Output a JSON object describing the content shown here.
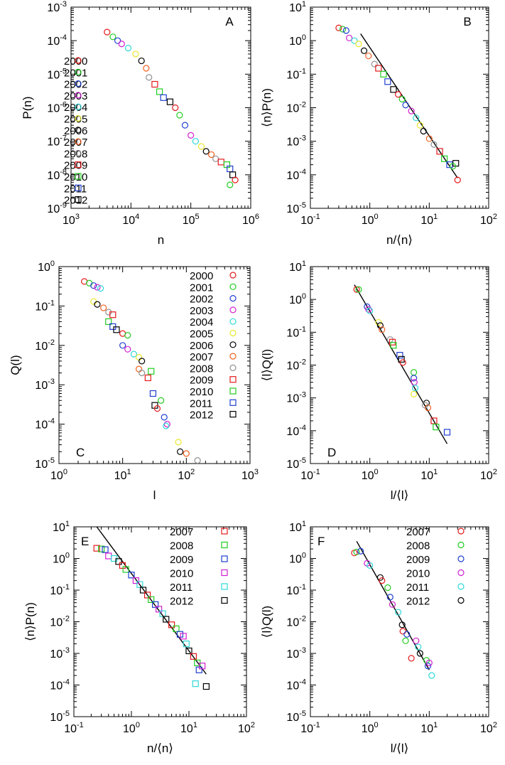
{
  "chart_data": [
    {
      "panel": "A",
      "type": "scatter",
      "xscale": "log",
      "yscale": "log",
      "xlim": [
        1000,
        1000000
      ],
      "ylim": [
        1e-09,
        0.001
      ],
      "xticks": [
        "10^3",
        "10^4",
        "10^5",
        "10^6"
      ],
      "yticks": [
        "10^-9",
        "10^-8",
        "10^-7",
        "10^-6",
        "10^-5",
        "10^-4",
        "10^-3"
      ],
      "xlabel": "n",
      "ylabel": "P(n)",
      "legend": {
        "position": "left",
        "entries": [
          {
            "label": "2000",
            "color": "#e41a1c",
            "marker": "circle"
          },
          {
            "label": "2001",
            "color": "#22cc22",
            "marker": "circle"
          },
          {
            "label": "2002",
            "color": "#1f3fcf",
            "marker": "circle"
          },
          {
            "label": "2003",
            "color": "#d020d0",
            "marker": "circle"
          },
          {
            "label": "2004",
            "color": "#30d8d8",
            "marker": "circle"
          },
          {
            "label": "2005",
            "color": "#e8e830",
            "marker": "circle"
          },
          {
            "label": "2006",
            "color": "#000000",
            "marker": "circle"
          },
          {
            "label": "2007",
            "color": "#f06020",
            "marker": "circle"
          },
          {
            "label": "2008",
            "color": "#909090",
            "marker": "circle"
          },
          {
            "label": "2009",
            "color": "#e41a1c",
            "marker": "square"
          },
          {
            "label": "2010",
            "color": "#22cc22",
            "marker": "square"
          },
          {
            "label": "2011",
            "color": "#1f3fcf",
            "marker": "square"
          },
          {
            "label": "2012",
            "color": "#000000",
            "marker": "square"
          }
        ]
      },
      "series_points": [
        [
          4000,
          0.00018
        ],
        [
          5000,
          0.00013
        ],
        [
          6000,
          0.0001
        ],
        [
          7000,
          8e-05
        ],
        [
          9000,
          6e-05
        ],
        [
          12000,
          4e-05
        ],
        [
          15000,
          2.5e-05
        ],
        [
          18000,
          1.5e-05
        ],
        [
          20000,
          8e-06
        ],
        [
          25000,
          5e-06
        ],
        [
          30000,
          3e-06
        ],
        [
          35000,
          2e-06
        ],
        [
          45000,
          1.5e-06
        ],
        [
          55000,
          1e-06
        ],
        [
          65000,
          6e-07
        ],
        [
          80000,
          3e-07
        ],
        [
          100000,
          1.5e-07
        ],
        [
          120000,
          1e-07
        ],
        [
          150000,
          7e-08
        ],
        [
          180000,
          5e-08
        ],
        [
          220000,
          4e-08
        ],
        [
          260000,
          3e-08
        ],
        [
          320000,
          2.4e-08
        ],
        [
          400000,
          2e-08
        ],
        [
          450000,
          1.5e-08
        ],
        [
          500000,
          1e-08
        ],
        [
          550000,
          7e-09
        ],
        [
          450000,
          5e-09
        ]
      ]
    },
    {
      "panel": "B",
      "type": "scatter",
      "xscale": "log",
      "yscale": "log",
      "xlim": [
        0.1,
        100
      ],
      "ylim": [
        1e-05,
        10
      ],
      "xticks": [
        "10^-1",
        "10^0",
        "10^1",
        "10^2"
      ],
      "yticks": [
        "10^-5",
        "10^-4",
        "10^-3",
        "10^-2",
        "10^-1",
        "10^0",
        "10^1"
      ],
      "xlabel": "n/⟨n⟩",
      "ylabel": "⟨n⟩P(n)",
      "fit_line": [
        [
          0.7,
          1.6
        ],
        [
          30,
          8e-05
        ]
      ],
      "series_points": [
        [
          0.3,
          2.4
        ],
        [
          0.35,
          2.2
        ],
        [
          0.4,
          2.0
        ],
        [
          0.45,
          1.2
        ],
        [
          0.55,
          1.0
        ],
        [
          0.65,
          0.8
        ],
        [
          0.8,
          0.5
        ],
        [
          0.95,
          0.35
        ],
        [
          1.2,
          0.2
        ],
        [
          1.4,
          0.15
        ],
        [
          1.7,
          0.1
        ],
        [
          2.0,
          0.06
        ],
        [
          2.5,
          0.035
        ],
        [
          3.0,
          0.025
        ],
        [
          3.5,
          0.018
        ],
        [
          4.0,
          0.012
        ],
        [
          5.0,
          0.008
        ],
        [
          6.0,
          0.005
        ],
        [
          7.0,
          0.003
        ],
        [
          8.0,
          0.002
        ],
        [
          10,
          0.0012
        ],
        [
          12,
          0.0008
        ],
        [
          15,
          0.0005
        ],
        [
          18,
          0.0003
        ],
        [
          22,
          0.0002
        ],
        [
          28,
          0.00022
        ],
        [
          30,
          7e-05
        ],
        [
          25,
          0.00018
        ]
      ]
    },
    {
      "panel": "C",
      "type": "scatter",
      "xscale": "log",
      "yscale": "log",
      "xlim": [
        1,
        1000
      ],
      "ylim": [
        1e-05,
        1
      ],
      "xticks": [
        "10^0",
        "10^1",
        "10^2",
        "10^3"
      ],
      "yticks": [
        "10^-5",
        "10^-4",
        "10^-3",
        "10^-2",
        "10^-1",
        "10^0"
      ],
      "xlabel": "l",
      "ylabel": "Q(l)",
      "legend": {
        "position": "top-right",
        "entries": [
          {
            "label": "2000",
            "color": "#e41a1c",
            "marker": "circle"
          },
          {
            "label": "2001",
            "color": "#22cc22",
            "marker": "circle"
          },
          {
            "label": "2002",
            "color": "#1f3fcf",
            "marker": "circle"
          },
          {
            "label": "2003",
            "color": "#d020d0",
            "marker": "circle"
          },
          {
            "label": "2004",
            "color": "#30d8d8",
            "marker": "circle"
          },
          {
            "label": "2005",
            "color": "#e8e830",
            "marker": "circle"
          },
          {
            "label": "2006",
            "color": "#000000",
            "marker": "circle"
          },
          {
            "label": "2007",
            "color": "#f06020",
            "marker": "circle"
          },
          {
            "label": "2008",
            "color": "#909090",
            "marker": "circle"
          },
          {
            "label": "2009",
            "color": "#e41a1c",
            "marker": "square"
          },
          {
            "label": "2010",
            "color": "#22cc22",
            "marker": "square"
          },
          {
            "label": "2011",
            "color": "#1f3fcf",
            "marker": "square"
          },
          {
            "label": "2012",
            "color": "#000000",
            "marker": "square"
          }
        ]
      },
      "series_points": [
        [
          2.5,
          0.42
        ],
        [
          3.0,
          0.38
        ],
        [
          3.5,
          0.33
        ],
        [
          4.0,
          0.3
        ],
        [
          4.5,
          0.28
        ],
        [
          3.5,
          0.13
        ],
        [
          4.0,
          0.11
        ],
        [
          5.0,
          0.09
        ],
        [
          6.0,
          0.07
        ],
        [
          7.0,
          0.06
        ],
        [
          6.0,
          0.04
        ],
        [
          7.0,
          0.03
        ],
        [
          8.0,
          0.025
        ],
        [
          10,
          0.02
        ],
        [
          12,
          0.018
        ],
        [
          10,
          0.01
        ],
        [
          12,
          0.008
        ],
        [
          15,
          0.006
        ],
        [
          18,
          0.005
        ],
        [
          20,
          0.004
        ],
        [
          18,
          0.0025
        ],
        [
          20,
          0.002
        ],
        [
          25,
          0.0015
        ],
        [
          28,
          0.0022
        ],
        [
          30,
          0.0006
        ],
        [
          32,
          0.0003
        ],
        [
          35,
          0.00025
        ],
        [
          40,
          0.0004
        ],
        [
          45,
          0.00015
        ],
        [
          50,
          0.0001
        ],
        [
          48,
          9e-05
        ],
        [
          75,
          3.5e-05
        ],
        [
          80,
          2e-05
        ],
        [
          100,
          1.8e-05
        ],
        [
          150,
          1.2e-05
        ]
      ]
    },
    {
      "panel": "D",
      "type": "scatter",
      "xscale": "log",
      "yscale": "log",
      "xlim": [
        0.1,
        100
      ],
      "ylim": [
        1e-05,
        10
      ],
      "xticks": [
        "10^-1",
        "10^0",
        "10^1",
        "10^2"
      ],
      "yticks": [
        "10^-5",
        "10^-4",
        "10^-3",
        "10^-2",
        "10^-1",
        "10^0",
        "10^1"
      ],
      "xlabel": "l/⟨l⟩",
      "ylabel": "⟨l⟩Q(l)",
      "fit_line": [
        [
          0.55,
          2.8
        ],
        [
          20,
          4e-05
        ]
      ],
      "series_points": [
        [
          0.6,
          2.0
        ],
        [
          0.65,
          2.0
        ],
        [
          0.9,
          0.6
        ],
        [
          0.95,
          0.5
        ],
        [
          1.0,
          0.45
        ],
        [
          1.4,
          0.2
        ],
        [
          1.5,
          0.16
        ],
        [
          1.6,
          0.12
        ],
        [
          2.2,
          0.06
        ],
        [
          2.4,
          0.05
        ],
        [
          2.5,
          0.04
        ],
        [
          3.2,
          0.02
        ],
        [
          3.4,
          0.015
        ],
        [
          3.6,
          0.012
        ],
        [
          5.5,
          0.006
        ],
        [
          5.5,
          0.004
        ],
        [
          5.6,
          0.003
        ],
        [
          5.8,
          0.002
        ],
        [
          5.5,
          0.0013
        ],
        [
          9.0,
          0.0007
        ],
        [
          9.5,
          0.0005
        ],
        [
          8.5,
          0.0006
        ],
        [
          12,
          0.0002
        ],
        [
          13,
          0.00013
        ],
        [
          20,
          9e-05
        ]
      ]
    },
    {
      "panel": "E",
      "type": "scatter",
      "xscale": "log",
      "yscale": "log",
      "xlim": [
        0.1,
        100
      ],
      "ylim": [
        1e-05,
        10
      ],
      "xticks": [
        "10^-1",
        "10^0",
        "10^1",
        "10^2"
      ],
      "yticks": [
        "10^-5",
        "10^-4",
        "10^-3",
        "10^-2",
        "10^-1",
        "10^0",
        "10^1"
      ],
      "xlabel": "n/⟨n⟩",
      "ylabel": "⟨n⟩P(n)",
      "fit_line": [
        [
          0.25,
          10
        ],
        [
          20,
          0.00022
        ]
      ],
      "legend": {
        "position": "top-right",
        "entries": [
          {
            "label": "2007",
            "color": "#e41a1c",
            "marker": "square"
          },
          {
            "label": "2008",
            "color": "#22cc22",
            "marker": "square"
          },
          {
            "label": "2009",
            "color": "#1f3fcf",
            "marker": "square"
          },
          {
            "label": "2010",
            "color": "#d020d0",
            "marker": "square"
          },
          {
            "label": "2011",
            "color": "#30d8d8",
            "marker": "square"
          },
          {
            "label": "2012",
            "color": "#000000",
            "marker": "square"
          }
        ]
      },
      "series_points": [
        [
          0.25,
          2.1
        ],
        [
          0.3,
          2.0
        ],
        [
          0.35,
          1.9
        ],
        [
          0.4,
          1.2
        ],
        [
          0.5,
          1.0
        ],
        [
          0.6,
          0.8
        ],
        [
          0.7,
          0.6
        ],
        [
          0.8,
          0.45
        ],
        [
          1.0,
          0.3
        ],
        [
          1.2,
          0.2
        ],
        [
          1.4,
          0.15
        ],
        [
          1.6,
          0.1
        ],
        [
          1.9,
          0.07
        ],
        [
          2.2,
          0.05
        ],
        [
          2.6,
          0.035
        ],
        [
          3.0,
          0.025
        ],
        [
          3.5,
          0.018
        ],
        [
          4.0,
          0.012
        ],
        [
          5.0,
          0.008
        ],
        [
          6.0,
          0.006
        ],
        [
          7.0,
          0.004
        ],
        [
          8.0,
          0.0035
        ],
        [
          9.0,
          0.002
        ],
        [
          10,
          0.0012
        ],
        [
          12,
          0.0008
        ],
        [
          14,
          0.0005
        ],
        [
          15,
          0.0003
        ],
        [
          17,
          0.0004
        ],
        [
          13,
          0.00011
        ],
        [
          20,
          9e-05
        ]
      ]
    },
    {
      "panel": "F",
      "type": "scatter",
      "xscale": "log",
      "yscale": "log",
      "xlim": [
        0.1,
        100
      ],
      "ylim": [
        1e-05,
        10
      ],
      "xticks": [
        "10^-1",
        "10^0",
        "10^1",
        "10^2"
      ],
      "yticks": [
        "10^-5",
        "10^-4",
        "10^-3",
        "10^-2",
        "10^-1",
        "10^0",
        "10^1"
      ],
      "xlabel": "l/⟨l⟩",
      "ylabel": "⟨l⟩Q(l)",
      "fit_line": [
        [
          0.6,
          3.5
        ],
        [
          10,
          0.0003
        ]
      ],
      "legend": {
        "position": "top-right",
        "entries": [
          {
            "label": "2007",
            "color": "#e41a1c",
            "marker": "circle"
          },
          {
            "label": "2008",
            "color": "#22cc22",
            "marker": "circle"
          },
          {
            "label": "2009",
            "color": "#1f3fcf",
            "marker": "circle"
          },
          {
            "label": "2010",
            "color": "#d020d0",
            "marker": "circle"
          },
          {
            "label": "2011",
            "color": "#30d8d8",
            "marker": "circle"
          },
          {
            "label": "2012",
            "color": "#000000",
            "marker": "circle"
          }
        ]
      },
      "series_points": [
        [
          0.55,
          1.5
        ],
        [
          0.6,
          1.6
        ],
        [
          0.7,
          1.7
        ],
        [
          0.9,
          0.7
        ],
        [
          1.0,
          0.6
        ],
        [
          1.5,
          0.25
        ],
        [
          1.6,
          0.2
        ],
        [
          2.0,
          0.12
        ],
        [
          2.2,
          0.06
        ],
        [
          2.4,
          0.035
        ],
        [
          3.0,
          0.02
        ],
        [
          3.5,
          0.008
        ],
        [
          3.6,
          0.005
        ],
        [
          4.0,
          0.0025
        ],
        [
          4.2,
          0.004
        ],
        [
          6.0,
          0.0025
        ],
        [
          6.5,
          0.0016
        ],
        [
          7.0,
          0.001
        ],
        [
          5.0,
          0.0007
        ],
        [
          9.0,
          0.0006
        ],
        [
          9.5,
          0.0004
        ],
        [
          10,
          0.0005
        ],
        [
          11,
          0.0002
        ]
      ]
    }
  ]
}
